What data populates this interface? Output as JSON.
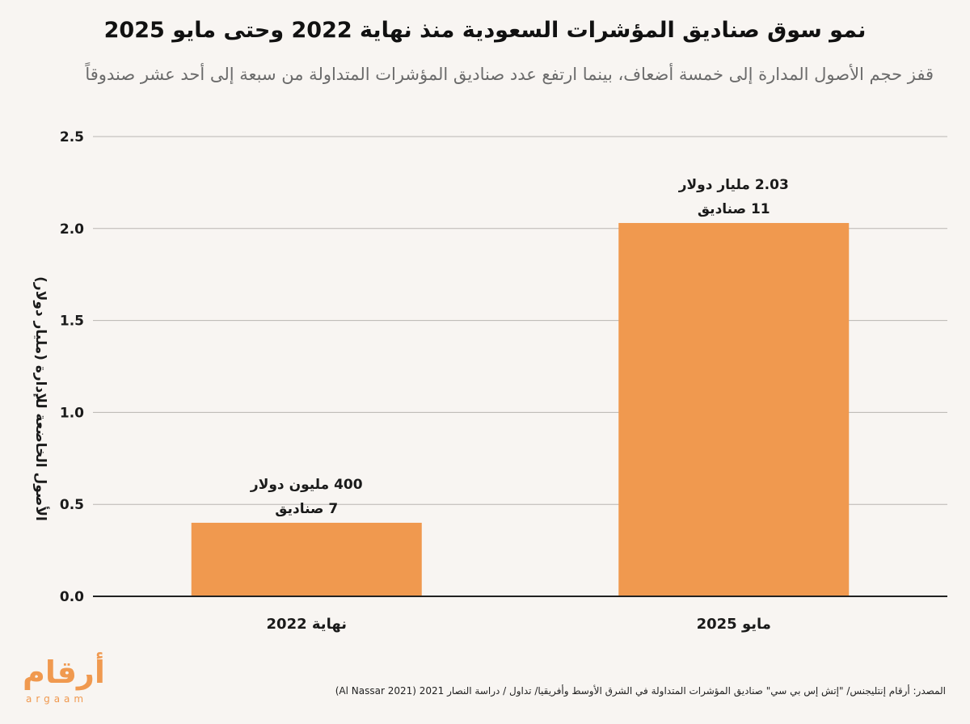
{
  "header": {
    "title": "نمو سوق صناديق المؤشرات السعودية منذ نهاية 2022  وحتى  مايو 2025",
    "subtitle": "قفز حجم الأصول المدارة إلى خمسة أضعاف، بينما ارتفع عدد صناديق المؤشرات المتداولة من سبعة إلى أحد عشر صندوقاً"
  },
  "chart_data": {
    "type": "bar",
    "categories": [
      "نهاية 2022",
      "مايو 2025"
    ],
    "values": [
      0.4,
      2.03
    ],
    "ylabel": "الأصول الخاضعة للإدارة (مليار دولار)",
    "xlabel": "",
    "ylim": [
      0,
      2.5
    ],
    "yticks": [
      "0.0",
      "0.5",
      "1.0",
      "1.5",
      "2.0",
      "2.5"
    ],
    "grid": true,
    "bar_color": "#f0994f",
    "annotations": [
      {
        "line1": "400 مليون دولار",
        "line2": "7  صناديق"
      },
      {
        "line1": "2.03  مليار دولار",
        "line2": "11 صناديق"
      }
    ]
  },
  "footer": {
    "source_line1": "المصدر: أرقام إنتليجنس/ \"إتش إس بي سي\" صناديق المؤشرات المتداولة في الشرق الأوسط وأفريقيا/  تداول / دراسة النصار 2021 (Al Nassar 2021)",
    "logo_arabic": "أرقام",
    "logo_latin": "argaam"
  }
}
